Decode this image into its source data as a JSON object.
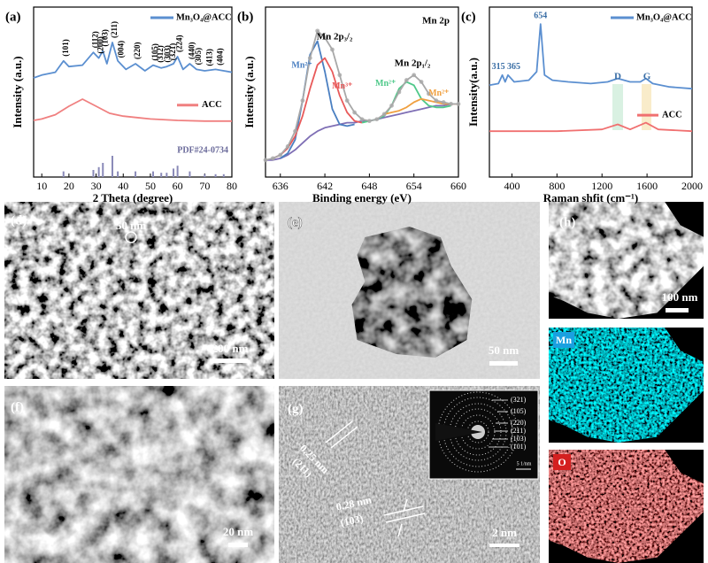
{
  "chart_data": [
    {
      "type": "line",
      "panel_label": "(a)",
      "x_label": "2 Theta (degree)",
      "y_label": "Intensity (a.u.)",
      "xlim": [
        7,
        80
      ],
      "ylim": [
        0,
        120
      ],
      "xticks": [
        10,
        20,
        30,
        40,
        50,
        60,
        70,
        80
      ],
      "series": [
        {
          "name": "Mn₃O₄@ACC",
          "type": "line",
          "color": "#5b8fd0",
          "x": [
            7,
            10,
            15,
            18,
            20,
            25,
            29,
            31,
            32.5,
            34,
            36,
            38,
            41,
            44.5,
            48,
            51,
            54,
            56,
            58.5,
            60,
            62,
            64.5,
            67,
            70,
            74,
            77,
            80
          ],
          "values": [
            70,
            72,
            74,
            82,
            78,
            79,
            88,
            84,
            89,
            80,
            95,
            82,
            76,
            80,
            75,
            79,
            77,
            78,
            80,
            85,
            76,
            80,
            76,
            75,
            76,
            75,
            74
          ]
        },
        {
          "name": "ACC",
          "type": "line",
          "color": "#f08080",
          "x": [
            7,
            10,
            15,
            20,
            25,
            30,
            35,
            40,
            45,
            50,
            60,
            70,
            80
          ],
          "values": [
            40,
            41,
            44,
            50,
            55,
            50,
            45,
            43,
            42,
            41,
            40,
            39.5,
            39.5
          ]
        },
        {
          "name": "PDF#24-0734",
          "type": "stem",
          "color": "#8a8ab8",
          "x": [
            18,
            29,
            31,
            32.5,
            36,
            38,
            44.5,
            51,
            54,
            56,
            58.5,
            60,
            64.5,
            70,
            74,
            77
          ],
          "values": [
            4,
            5,
            7,
            10,
            15,
            4,
            4,
            4,
            3,
            3,
            6,
            8,
            4,
            2,
            2,
            2
          ]
        }
      ],
      "annotations": [
        {
          "text": "(101)",
          "x": 18
        },
        {
          "text": "(112)",
          "x": 29
        },
        {
          "text": "(200)",
          "x": 31
        },
        {
          "text": "(103)",
          "x": 32.5
        },
        {
          "text": "(211)",
          "x": 36
        },
        {
          "text": "(004)",
          "x": 38.5
        },
        {
          "text": "(220)",
          "x": 44.5
        },
        {
          "text": "(105)",
          "x": 51
        },
        {
          "text": "(312)",
          "x": 53
        },
        {
          "text": "(303)",
          "x": 55.5
        },
        {
          "text": "(321)",
          "x": 57.5
        },
        {
          "text": "(224)",
          "x": 60
        },
        {
          "text": "(440)",
          "x": 64.5
        },
        {
          "text": "(305)",
          "x": 67
        },
        {
          "text": "(413)",
          "x": 71
        },
        {
          "text": "(404)",
          "x": 75
        }
      ]
    },
    {
      "type": "line",
      "panel_label": "(b)",
      "x_label": "Binding energy (eV)",
      "y_label": "Intensity (a.u.)",
      "xlim": [
        634,
        660
      ],
      "ylim": [
        0,
        100
      ],
      "xticks": [
        636,
        642,
        648,
        654,
        660
      ],
      "series": [
        {
          "type": "line",
          "color": "#7f6fb5",
          "x": [
            634,
            635,
            636,
            637,
            638,
            639,
            640,
            641,
            642,
            643,
            644,
            645,
            646,
            647,
            648,
            649,
            650,
            651,
            652,
            653,
            654,
            655,
            656,
            657,
            658,
            659,
            660
          ],
          "values": [
            10,
            10,
            11,
            13,
            16,
            20,
            24,
            27,
            29,
            30,
            31,
            32,
            32,
            33,
            33,
            34,
            35,
            36,
            37,
            38,
            39,
            40,
            41,
            42,
            42,
            43,
            43
          ]
        },
        {
          "name": "Mn²⁺",
          "type": "line",
          "color": "#4a7fc1",
          "x": [
            636,
            637,
            638,
            639,
            640,
            641,
            642,
            643,
            644,
            645,
            646
          ],
          "values": [
            11,
            14,
            22,
            45,
            72,
            80,
            62,
            40,
            31,
            30,
            31
          ]
        },
        {
          "name": "Mn³⁺",
          "type": "line",
          "color": "#e85a5a",
          "x": [
            635,
            636,
            637,
            638,
            639,
            640,
            641,
            642,
            643,
            644,
            645,
            646,
            647
          ],
          "values": [
            11,
            13,
            17,
            24,
            36,
            52,
            66,
            70,
            62,
            48,
            38,
            33,
            32
          ]
        },
        {
          "name": "Mn²⁺",
          "type": "line",
          "color": "#4fc98a",
          "x": [
            647,
            648,
            649,
            650,
            651,
            652,
            653,
            654,
            655,
            656,
            657,
            658,
            659
          ],
          "values": [
            32,
            33,
            34,
            36,
            42,
            52,
            56,
            54,
            46,
            42,
            41,
            41,
            42
          ]
        },
        {
          "name": "Mn²⁺",
          "type": "line",
          "color": "#f0a040",
          "x": [
            650,
            651,
            652,
            653,
            654,
            655,
            656,
            657,
            658,
            659,
            660
          ],
          "values": [
            37,
            38,
            39,
            41,
            44,
            46,
            45,
            44,
            43,
            43,
            43
          ]
        },
        {
          "type": "dots-line",
          "color": "#a8a8a8",
          "x": [
            634,
            635,
            636,
            637,
            638,
            639,
            640,
            641,
            642,
            643,
            644,
            645,
            646,
            647,
            648,
            649,
            650,
            651,
            652,
            653,
            654,
            655,
            656,
            657,
            658,
            659,
            660
          ],
          "values": [
            10,
            11,
            13,
            18,
            27,
            45,
            70,
            86,
            82,
            75,
            60,
            45,
            38,
            34,
            33,
            34,
            37,
            42,
            50,
            57,
            60,
            56,
            49,
            45,
            44,
            43,
            43
          ]
        }
      ],
      "annotations": [
        {
          "text": "Mn 2p"
        },
        {
          "text": "Mn 2p₃/₂"
        },
        {
          "text": "Mn 2p₁/₂"
        }
      ]
    },
    {
      "type": "line",
      "panel_label": "(c)",
      "x_label": "Raman shfit (cm⁻¹)",
      "y_label": "Intensity(a.u.)",
      "xlim": [
        200,
        2000
      ],
      "ylim": [
        0,
        100
      ],
      "xticks": [
        400,
        800,
        1200,
        1600,
        2000
      ],
      "series": [
        {
          "name": "Mn₃O₄@ACC",
          "type": "line",
          "color": "#5b8fd0",
          "x": [
            200,
            280,
            315,
            340,
            365,
            420,
            550,
            620,
            654,
            690,
            760,
            900,
            1100,
            1250,
            1340,
            1450,
            1540,
            1590,
            1650,
            1800,
            2000
          ],
          "values": [
            54,
            55,
            60,
            56,
            60,
            56,
            57,
            62,
            90,
            60,
            57,
            56,
            55,
            56,
            58,
            56,
            56,
            58,
            55,
            53,
            52
          ]
        },
        {
          "name": "ACC",
          "type": "line",
          "color": "#f07070",
          "x": [
            200,
            400,
            800,
            1200,
            1340,
            1450,
            1590,
            1700,
            2000
          ],
          "values": [
            27,
            27,
            27,
            28,
            31,
            28,
            32,
            28,
            27
          ]
        }
      ],
      "peak_labels": [
        315,
        365,
        654
      ],
      "bands": [
        "D",
        "G"
      ]
    }
  ],
  "images": [
    {
      "label": "(d)",
      "scale_bar": "200 nm",
      "marker": "50 nm"
    },
    {
      "label": "(e)",
      "scale_bar": "50 nm"
    },
    {
      "label": "(f)",
      "scale_bar": "20 nm"
    },
    {
      "label": "(g)",
      "scale_bar": "2 nm",
      "fringes": [
        {
          "spacing": "0.25 nm",
          "plane": "(211)"
        },
        {
          "spacing": "0.28 nm",
          "plane": "(103)"
        }
      ],
      "saed_rings": [
        "(321)",
        "(105)",
        "(220)",
        "(211)",
        "(103)",
        "(101)"
      ],
      "saed_scale": "5 1/nm"
    },
    {
      "label": "(h)",
      "scale_bar": "100 nm"
    },
    {
      "label": "Mn"
    },
    {
      "label": "O"
    }
  ]
}
